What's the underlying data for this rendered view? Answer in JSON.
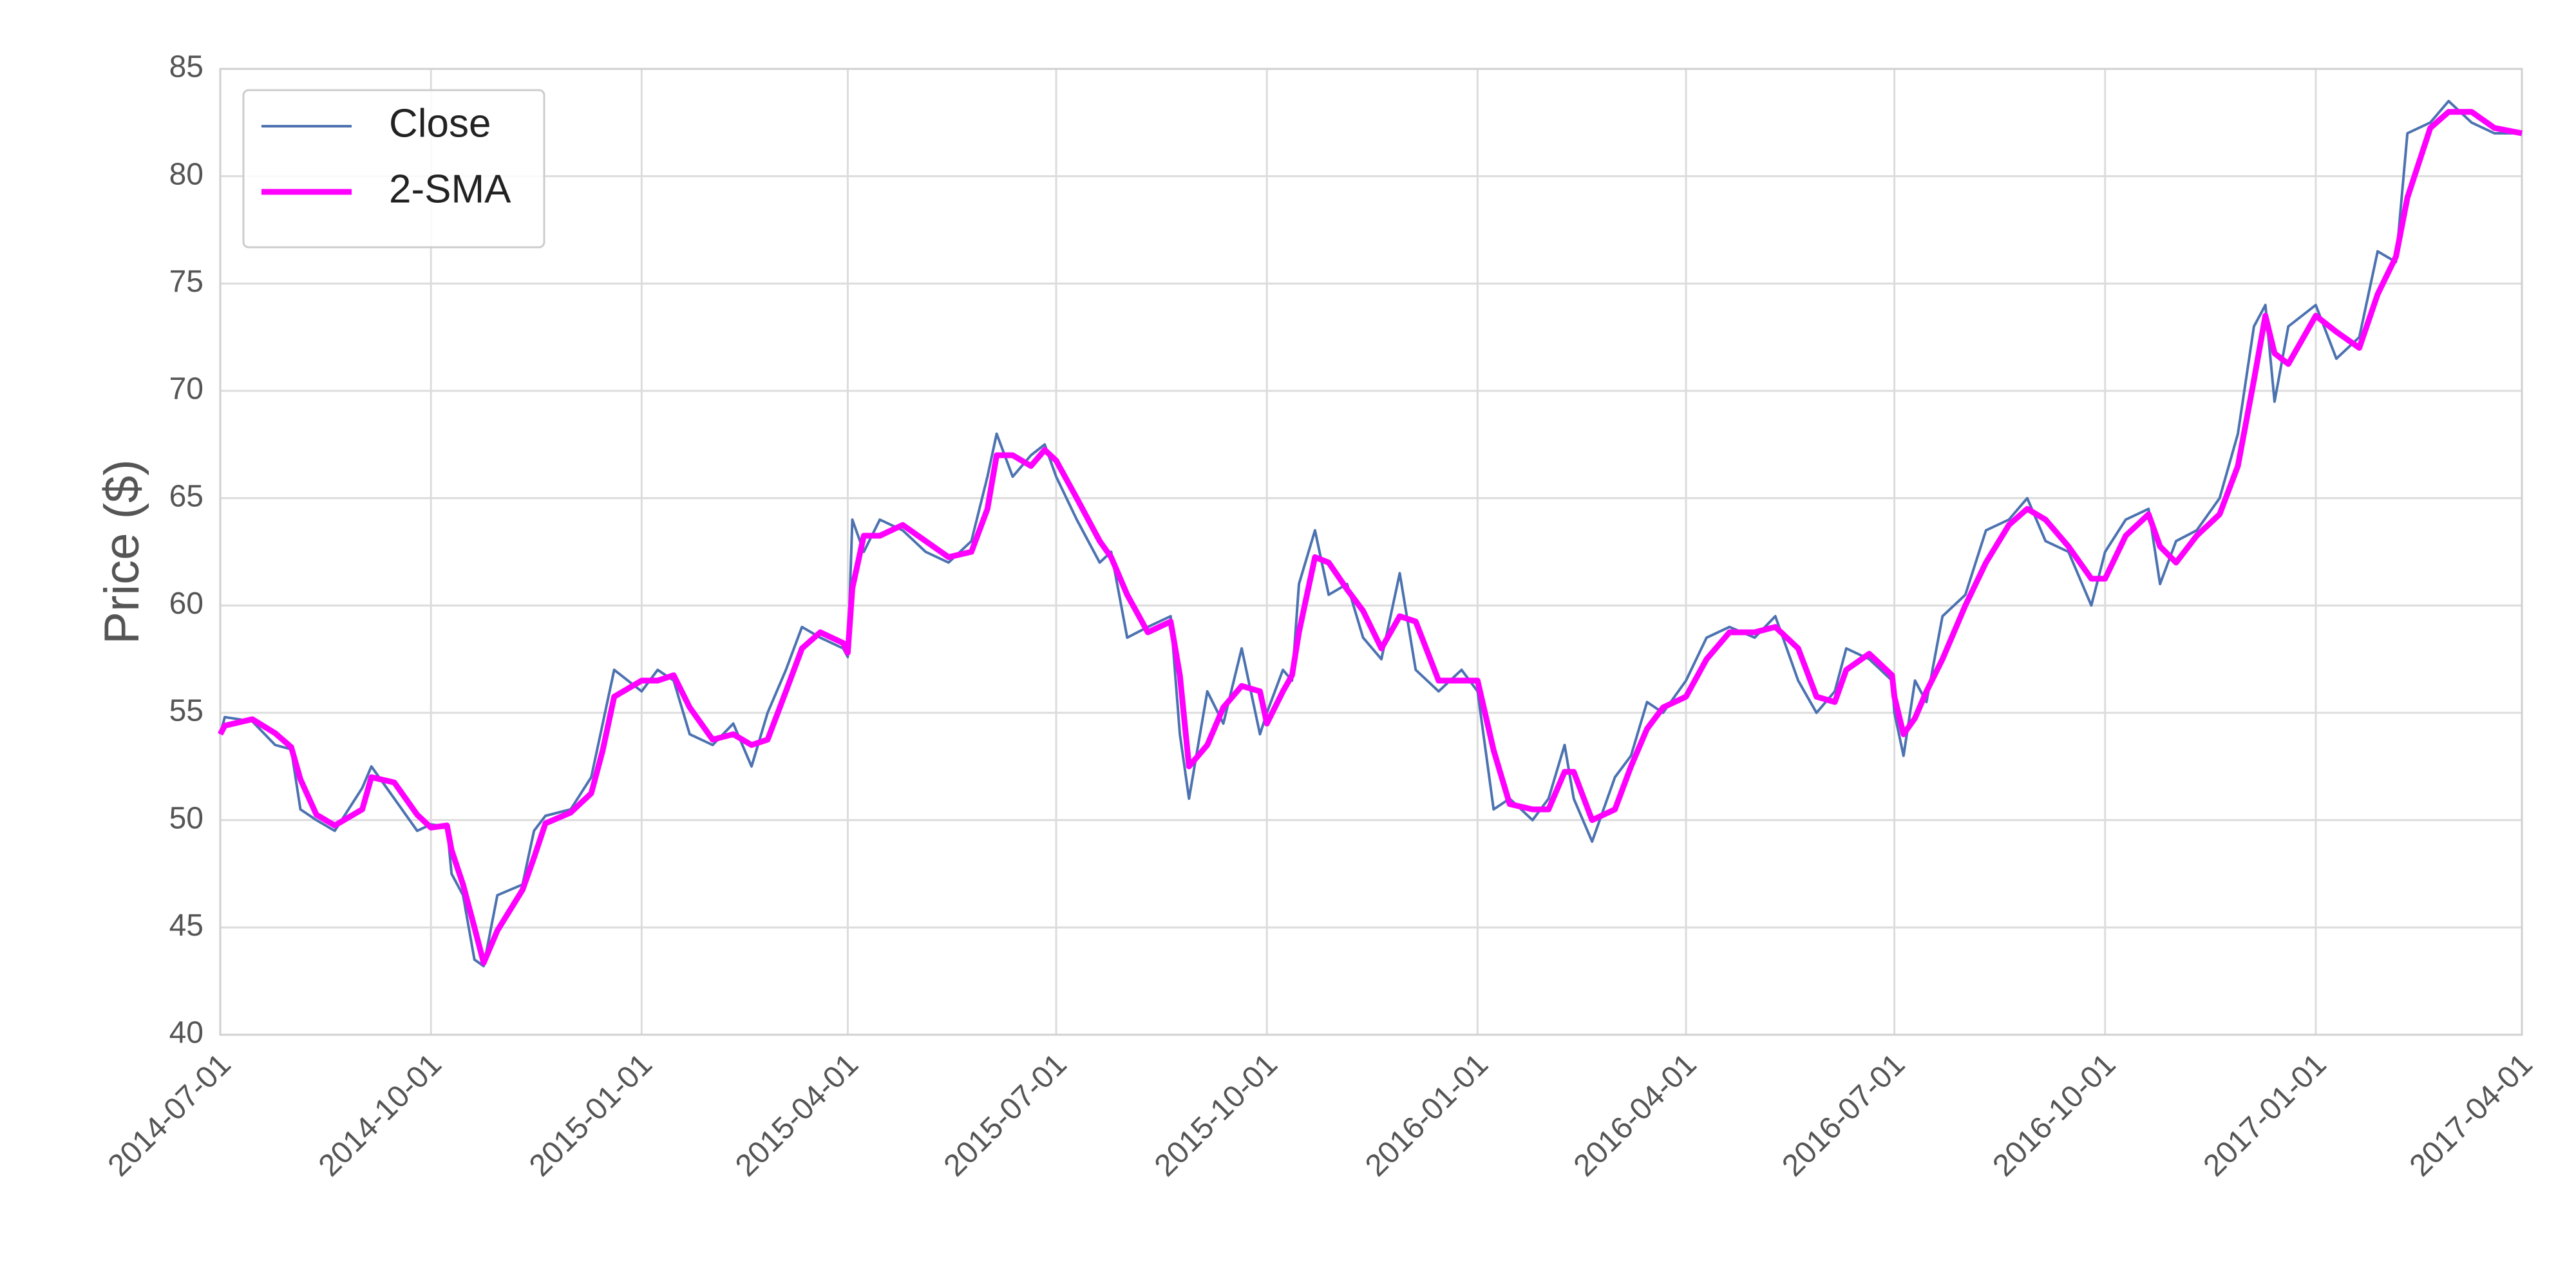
{
  "chart_data": {
    "type": "line",
    "ylabel": "Price ($)",
    "x": [
      "2014-07-01",
      "2014-07-03",
      "2014-07-15",
      "2014-07-25",
      "2014-08-01",
      "2014-08-05",
      "2014-08-12",
      "2014-08-20",
      "2014-09-01",
      "2014-09-05",
      "2014-09-15",
      "2014-09-25",
      "2014-10-01",
      "2014-10-08",
      "2014-10-10",
      "2014-10-15",
      "2014-10-20",
      "2014-10-24",
      "2014-10-30",
      "2014-11-10",
      "2014-11-15",
      "2014-11-20",
      "2014-12-01",
      "2014-12-10",
      "2014-12-15",
      "2014-12-20",
      "2015-01-01",
      "2015-01-08",
      "2015-01-15",
      "2015-01-22",
      "2015-02-01",
      "2015-02-10",
      "2015-02-18",
      "2015-02-25",
      "2015-03-05",
      "2015-03-12",
      "2015-03-20",
      "2015-03-30",
      "2015-04-01",
      "2015-04-03",
      "2015-04-08",
      "2015-04-15",
      "2015-04-25",
      "2015-05-05",
      "2015-05-15",
      "2015-05-25",
      "2015-06-01",
      "2015-06-05",
      "2015-06-12",
      "2015-06-20",
      "2015-06-26",
      "2015-07-01",
      "2015-07-10",
      "2015-07-20",
      "2015-07-25",
      "2015-08-01",
      "2015-08-10",
      "2015-08-20",
      "2015-08-24",
      "2015-08-28",
      "2015-09-05",
      "2015-09-12",
      "2015-09-20",
      "2015-09-28",
      "2015-10-01",
      "2015-10-08",
      "2015-10-12",
      "2015-10-15",
      "2015-10-22",
      "2015-10-28",
      "2015-11-05",
      "2015-11-12",
      "2015-11-20",
      "2015-11-28",
      "2015-12-05",
      "2015-12-15",
      "2015-12-25",
      "2016-01-01",
      "2016-01-08",
      "2016-01-15",
      "2016-01-25",
      "2016-02-01",
      "2016-02-08",
      "2016-02-12",
      "2016-02-20",
      "2016-03-01",
      "2016-03-08",
      "2016-03-15",
      "2016-03-22",
      "2016-04-01",
      "2016-04-10",
      "2016-04-20",
      "2016-05-01",
      "2016-05-10",
      "2016-05-20",
      "2016-05-28",
      "2016-06-05",
      "2016-06-10",
      "2016-06-20",
      "2016-06-25",
      "2016-06-30",
      "2016-07-01",
      "2016-07-05",
      "2016-07-10",
      "2016-07-15",
      "2016-07-22",
      "2016-08-01",
      "2016-08-10",
      "2016-08-20",
      "2016-08-28",
      "2016-09-05",
      "2016-09-15",
      "2016-09-25",
      "2016-10-01",
      "2016-10-10",
      "2016-10-20",
      "2016-10-25",
      "2016-11-01",
      "2016-11-10",
      "2016-11-20",
      "2016-11-28",
      "2016-12-05",
      "2016-12-10",
      "2016-12-14",
      "2016-12-20",
      "2017-01-01",
      "2017-01-10",
      "2017-01-20",
      "2017-01-28",
      "2017-02-05",
      "2017-02-10",
      "2017-02-20",
      "2017-02-28",
      "2017-03-10",
      "2017-03-20",
      "2017-04-01"
    ],
    "series": [
      {
        "name": "Close",
        "color": "#4c72b0",
        "values": [
          54.0,
          54.8,
          54.6,
          53.5,
          53.3,
          50.5,
          50.0,
          49.5,
          51.5,
          52.5,
          51.0,
          49.5,
          49.8,
          49.7,
          47.5,
          46.5,
          43.5,
          43.2,
          46.5,
          47.0,
          49.5,
          50.2,
          50.5,
          52.0,
          54.5,
          57.0,
          56.0,
          57.0,
          56.5,
          54.0,
          53.5,
          54.5,
          52.5,
          55.0,
          57.0,
          59.0,
          58.5,
          58.0,
          57.6,
          64.0,
          62.5,
          64.0,
          63.5,
          62.5,
          62.0,
          63.0,
          66.0,
          68.0,
          66.0,
          67.0,
          67.5,
          66.0,
          64.0,
          62.0,
          62.5,
          58.5,
          59.0,
          59.5,
          54.0,
          51.0,
          56.0,
          54.5,
          58.0,
          54.0,
          55.0,
          57.0,
          56.5,
          61.0,
          63.5,
          60.5,
          61.0,
          58.5,
          57.5,
          61.5,
          57.0,
          56.0,
          57.0,
          56.0,
          50.5,
          51.0,
          50.0,
          51.0,
          53.5,
          51.0,
          49.0,
          52.0,
          53.0,
          55.5,
          55.0,
          56.5,
          58.5,
          59.0,
          58.5,
          59.5,
          56.5,
          55.0,
          56.0,
          58.0,
          57.5,
          57.0,
          56.5,
          55.0,
          53.0,
          56.5,
          55.5,
          59.5,
          60.5,
          63.5,
          64.0,
          65.0,
          63.0,
          62.5,
          60.0,
          62.5,
          64.0,
          64.5,
          61.0,
          63.0,
          63.5,
          65.0,
          68.0,
          73.0,
          74.0,
          69.5,
          73.0,
          74.0,
          71.5,
          72.5,
          76.5,
          76.0,
          82.0,
          82.5,
          83.5,
          82.5,
          82.0,
          82.0
        ]
      },
      {
        "name": "2-SMA",
        "color": "#ff00ff",
        "values": [
          54.0,
          54.4,
          54.7,
          54.05,
          53.4,
          51.9,
          50.25,
          49.75,
          50.5,
          52.0,
          51.75,
          50.25,
          49.65,
          49.75,
          48.6,
          47.0,
          45.0,
          43.35,
          44.85,
          46.75,
          48.25,
          49.85,
          50.35,
          51.25,
          53.25,
          55.75,
          56.5,
          56.5,
          56.75,
          55.25,
          53.75,
          54.0,
          53.5,
          53.75,
          56.0,
          58.0,
          58.75,
          58.25,
          57.8,
          60.8,
          63.25,
          63.25,
          63.75,
          63.0,
          62.25,
          62.5,
          64.5,
          67.0,
          67.0,
          66.5,
          67.25,
          66.75,
          65.0,
          63.0,
          62.25,
          60.5,
          58.75,
          59.25,
          56.75,
          52.5,
          53.5,
          55.25,
          56.25,
          56.0,
          54.5,
          56.0,
          56.75,
          58.75,
          62.25,
          62.0,
          60.75,
          59.75,
          58.0,
          59.5,
          59.25,
          56.5,
          56.5,
          56.5,
          53.25,
          50.75,
          50.5,
          50.5,
          52.25,
          52.25,
          50.0,
          50.5,
          52.5,
          54.25,
          55.25,
          55.75,
          57.5,
          58.75,
          58.75,
          59.0,
          58.0,
          55.75,
          55.5,
          57.0,
          57.75,
          57.25,
          56.75,
          55.75,
          54.0,
          54.75,
          56.0,
          57.5,
          60.0,
          62.0,
          63.75,
          64.5,
          64.0,
          62.75,
          61.25,
          61.25,
          63.25,
          64.25,
          62.75,
          62.0,
          63.25,
          64.25,
          66.5,
          70.5,
          73.5,
          71.75,
          71.25,
          73.5,
          72.75,
          72.0,
          74.5,
          76.25,
          79.0,
          82.25,
          83.0,
          83.0,
          82.25,
          82.0
        ]
      }
    ],
    "xlim": [
      "2014-07-01",
      "2017-04-01"
    ],
    "xticks": [
      "2014-07-01",
      "2014-10-01",
      "2015-01-01",
      "2015-04-01",
      "2015-07-01",
      "2015-10-01",
      "2016-01-01",
      "2016-04-01",
      "2016-07-01",
      "2016-10-01",
      "2017-01-01",
      "2017-04-01"
    ],
    "ylim": [
      40,
      85
    ],
    "yticks": [
      40,
      45,
      50,
      55,
      60,
      65,
      70,
      75,
      80,
      85
    ],
    "grid": true,
    "legend": "upper left"
  }
}
